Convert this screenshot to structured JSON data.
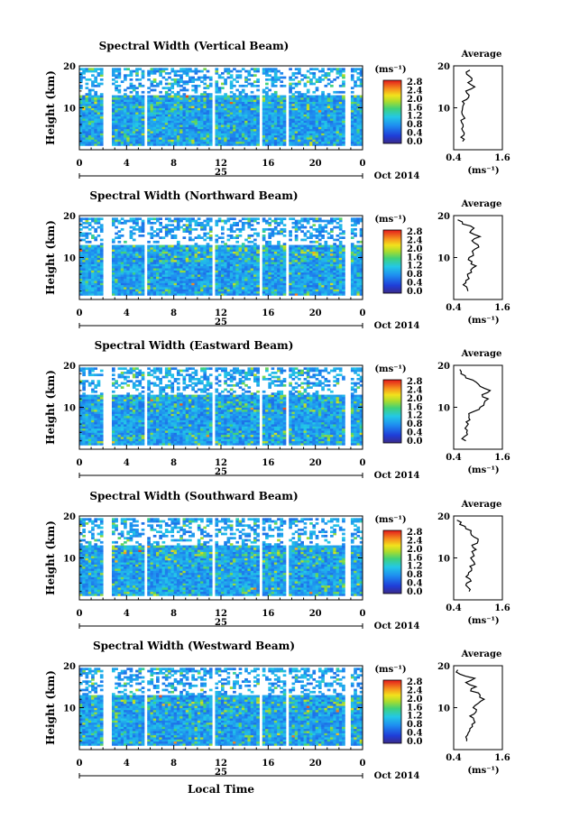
{
  "figure": {
    "date_label": "Oct 2014",
    "day_label": "25",
    "xlabel": "Local Time"
  },
  "chart_data": [
    {
      "type": "heatmap",
      "title": "Spectral Width (Vertical Beam)",
      "ylabel": "Height (km)",
      "xlim": [
        0,
        24
      ],
      "ylim": [
        0,
        20
      ],
      "x_ticks": [
        "0",
        "4",
        "8",
        "12",
        "16",
        "20",
        "0"
      ],
      "y_ticks": [
        "10",
        "20"
      ],
      "colorbar": {
        "label": "(ms⁻¹)",
        "ticks": [
          "0.0",
          "0.4",
          "0.8",
          "1.2",
          "1.6",
          "2.0",
          "2.4",
          "2.8"
        ]
      },
      "data_gaps_hours": [
        [
          2.0,
          2.7
        ],
        [
          5.5,
          5.8
        ],
        [
          11.2,
          11.4
        ],
        [
          15.3,
          15.5
        ],
        [
          17.5,
          17.8
        ],
        [
          22.6,
          22.9
        ]
      ],
      "average_profile": {
        "title": "Average",
        "xlabel": "(ms⁻¹)",
        "x_ticks": [
          "0.4",
          "1.6"
        ],
        "y_ticks": [
          "10",
          "20"
        ],
        "xlim": [
          0.4,
          1.6
        ],
        "heights_km": [
          2,
          3,
          4,
          5,
          6,
          7,
          8,
          9,
          10,
          11,
          12,
          13,
          14,
          15,
          16,
          17,
          18,
          19
        ],
        "values": [
          0.62,
          0.58,
          0.66,
          0.6,
          0.63,
          0.58,
          0.64,
          0.6,
          0.62,
          0.66,
          0.72,
          0.78,
          0.7,
          0.92,
          0.75,
          0.85,
          0.72,
          0.8
        ]
      }
    },
    {
      "type": "heatmap",
      "title": "Spectral Width (Northward Beam)",
      "ylabel": "Height (km)",
      "xlim": [
        0,
        24
      ],
      "ylim": [
        0,
        20
      ],
      "x_ticks": [
        "0",
        "4",
        "8",
        "12",
        "16",
        "20",
        "0"
      ],
      "y_ticks": [
        "10",
        "20"
      ],
      "colorbar": {
        "label": "(ms⁻¹)",
        "ticks": [
          "0.0",
          "0.4",
          "0.8",
          "1.2",
          "1.6",
          "2.0",
          "2.4",
          "2.8"
        ]
      },
      "data_gaps_hours": [
        [
          2.0,
          2.7
        ],
        [
          5.5,
          5.8
        ],
        [
          11.2,
          11.4
        ],
        [
          15.3,
          15.5
        ],
        [
          17.5,
          17.8
        ],
        [
          22.6,
          22.9
        ]
      ],
      "average_profile": {
        "title": "Average",
        "xlabel": "(ms⁻¹)",
        "x_ticks": [
          "0.4",
          "1.6"
        ],
        "y_ticks": [
          "10",
          "20"
        ],
        "xlim": [
          0.4,
          1.6
        ],
        "heights_km": [
          2,
          3,
          4,
          5,
          6,
          7,
          8,
          9,
          10,
          11,
          12,
          13,
          14,
          15,
          16,
          17,
          18,
          19
        ],
        "values": [
          0.75,
          0.72,
          0.7,
          0.78,
          0.74,
          0.82,
          0.95,
          0.85,
          0.78,
          0.88,
          0.92,
          1.0,
          0.85,
          1.05,
          0.8,
          0.9,
          0.62,
          0.5
        ]
      }
    },
    {
      "type": "heatmap",
      "title": "Spectral Width (Eastward Beam)",
      "ylabel": "Height (km)",
      "xlim": [
        0,
        24
      ],
      "ylim": [
        0,
        20
      ],
      "x_ticks": [
        "0",
        "4",
        "8",
        "12",
        "16",
        "20",
        "0"
      ],
      "y_ticks": [
        "10",
        "20"
      ],
      "colorbar": {
        "label": "(ms⁻¹)",
        "ticks": [
          "0.0",
          "0.4",
          "0.8",
          "1.2",
          "1.6",
          "2.0",
          "2.4",
          "2.8"
        ]
      },
      "data_gaps_hours": [
        [
          2.0,
          2.7
        ],
        [
          5.5,
          5.8
        ],
        [
          11.2,
          11.4
        ],
        [
          15.3,
          15.5
        ],
        [
          17.5,
          17.8
        ],
        [
          22.6,
          22.9
        ]
      ],
      "average_profile": {
        "title": "Average",
        "xlabel": "(ms⁻¹)",
        "x_ticks": [
          "0.4",
          "1.6"
        ],
        "y_ticks": [
          "10",
          "20"
        ],
        "xlim": [
          0.4,
          1.6
        ],
        "heights_km": [
          2,
          3,
          4,
          5,
          6,
          7,
          8,
          9,
          10,
          11,
          12,
          13,
          14,
          15,
          16,
          17,
          18,
          19
        ],
        "values": [
          0.7,
          0.66,
          0.72,
          0.68,
          0.76,
          0.8,
          0.78,
          0.9,
          1.05,
          1.15,
          1.25,
          1.1,
          1.3,
          1.05,
          0.95,
          0.7,
          0.58,
          0.55
        ]
      }
    },
    {
      "type": "heatmap",
      "title": "Spectral Width (Southward Beam)",
      "ylabel": "Height (km)",
      "xlim": [
        0,
        24
      ],
      "ylim": [
        0,
        20
      ],
      "x_ticks": [
        "0",
        "4",
        "8",
        "12",
        "16",
        "20",
        "0"
      ],
      "y_ticks": [
        "10",
        "20"
      ],
      "colorbar": {
        "label": "(ms⁻¹)",
        "ticks": [
          "0.0",
          "0.4",
          "0.8",
          "1.2",
          "1.6",
          "2.0",
          "2.4",
          "2.8"
        ]
      },
      "data_gaps_hours": [
        [
          2.0,
          2.7
        ],
        [
          5.5,
          5.8
        ],
        [
          11.2,
          11.4
        ],
        [
          15.3,
          15.5
        ],
        [
          17.5,
          17.8
        ],
        [
          22.6,
          22.9
        ]
      ],
      "average_profile": {
        "title": "Average",
        "xlabel": "(ms⁻¹)",
        "x_ticks": [
          "0.4",
          "1.6"
        ],
        "y_ticks": [
          "10",
          "20"
        ],
        "xlim": [
          0.4,
          1.6
        ],
        "heights_km": [
          2,
          3,
          4,
          5,
          6,
          7,
          8,
          9,
          10,
          11,
          12,
          13,
          14,
          15,
          16,
          17,
          18,
          19
        ],
        "values": [
          0.78,
          0.75,
          0.72,
          0.8,
          0.76,
          0.84,
          0.8,
          0.9,
          0.82,
          0.88,
          0.95,
          0.85,
          1.0,
          0.9,
          0.82,
          0.7,
          0.55,
          0.48
        ]
      }
    },
    {
      "type": "heatmap",
      "title": "Spectral Width (Westward Beam)",
      "ylabel": "Height (km)",
      "xlim": [
        0,
        24
      ],
      "ylim": [
        0,
        20
      ],
      "x_ticks": [
        "0",
        "4",
        "8",
        "12",
        "16",
        "20",
        "0"
      ],
      "y_ticks": [
        "10",
        "20"
      ],
      "colorbar": {
        "label": "(ms⁻¹)",
        "ticks": [
          "0.0",
          "0.4",
          "0.8",
          "1.2",
          "1.6",
          "2.0",
          "2.4",
          "2.8"
        ]
      },
      "data_gaps_hours": [
        [
          2.0,
          2.7
        ],
        [
          5.5,
          5.8
        ],
        [
          11.2,
          11.4
        ],
        [
          15.3,
          15.5
        ],
        [
          17.5,
          17.8
        ],
        [
          22.6,
          22.9
        ]
      ],
      "average_profile": {
        "title": "Average",
        "xlabel": "(ms⁻¹)",
        "x_ticks": [
          "0.4",
          "1.6"
        ],
        "y_ticks": [
          "10",
          "20"
        ],
        "xlim": [
          0.4,
          1.6
        ],
        "heights_km": [
          2,
          3,
          4,
          5,
          6,
          7,
          8,
          9,
          10,
          11,
          12,
          13,
          14,
          15,
          16,
          17,
          18,
          19
        ],
        "values": [
          0.72,
          0.7,
          0.76,
          0.8,
          0.85,
          0.9,
          0.8,
          0.95,
          0.88,
          1.0,
          1.15,
          1.05,
          0.82,
          0.95,
          0.7,
          0.92,
          0.55,
          0.5
        ]
      }
    }
  ]
}
